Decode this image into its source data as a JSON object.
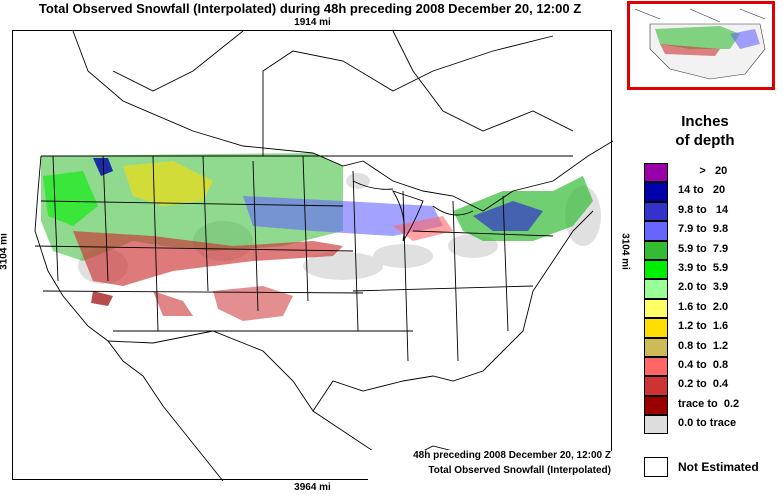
{
  "title": "Total Observed Snowfall (Interpolated) during 48h preceding 2008 December 20, 12:00 Z",
  "dimensions": {
    "top": "1914 mi",
    "bottom": "3964 mi",
    "left": "3104 mi",
    "right": "3104 mi"
  },
  "captions": {
    "line1": "48h preceding 2008 December 20, 12:00 Z",
    "line2": "Total Observed Snowfall (Interpolated)"
  },
  "legend": {
    "title_line1": "Inches",
    "title_line2": "of depth",
    "items": [
      {
        "label": "       >   20",
        "color": "#9900aa"
      },
      {
        "label": "14 to   20",
        "color": "#0000aa"
      },
      {
        "label": "9.8 to   14",
        "color": "#3333cc"
      },
      {
        "label": "7.9 to  9.8",
        "color": "#6666ff"
      },
      {
        "label": "5.9 to  7.9",
        "color": "#33bb33"
      },
      {
        "label": "3.9 to  5.9",
        "color": "#00ee00"
      },
      {
        "label": "2.0 to  3.9",
        "color": "#99ff99"
      },
      {
        "label": "1.6 to  2.0",
        "color": "#ffff66"
      },
      {
        "label": "1.2 to  1.6",
        "color": "#ffdd00"
      },
      {
        "label": "0.8 to  1.2",
        "color": "#ccbb55"
      },
      {
        "label": "0.4 to  0.8",
        "color": "#ff6666"
      },
      {
        "label": "0.2 to  0.4",
        "color": "#cc3333"
      },
      {
        "label": "trace to  0.2",
        "color": "#990000"
      },
      {
        "label": "0.0 to trace",
        "color": "#dddddd"
      }
    ],
    "not_estimated": "Not Estimated"
  },
  "colors": {
    "inset_border": "#e00000",
    "background": "#ffffff",
    "border": "#000000"
  }
}
